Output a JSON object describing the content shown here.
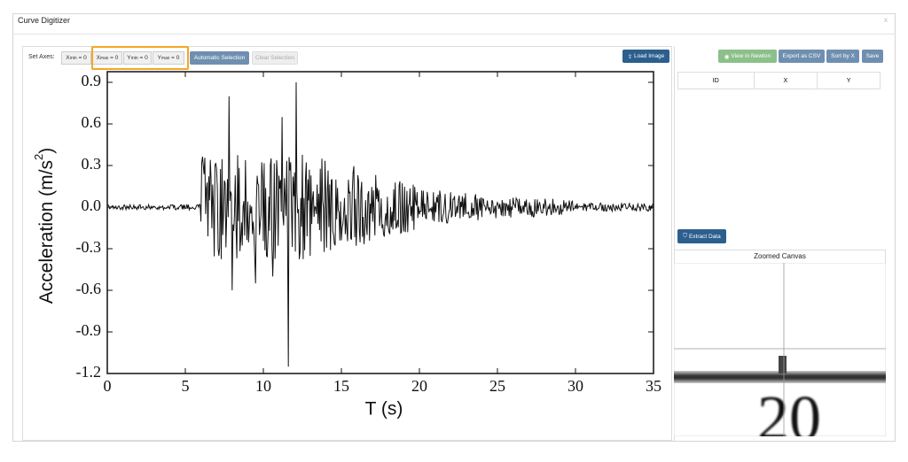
{
  "header": {
    "title": "Curve Digitizer",
    "close": "x"
  },
  "toolbar": {
    "set_axes_label": "Set Axes:",
    "axis_buttons": [
      {
        "symbol": "X",
        "subscript": "min",
        "rest": " = 0"
      },
      {
        "symbol": "X",
        "subscript": "max",
        "rest": " = 0"
      },
      {
        "symbol": "Y",
        "subscript": "min",
        "rest": " = 0"
      },
      {
        "symbol": "Y",
        "subscript": "max",
        "rest": " = 0"
      }
    ],
    "automatic_selection": "Automatic Selection",
    "clear_selection": "Clear Selection",
    "load_image": "Load Image"
  },
  "loaded_image": {
    "y_ticks": [
      "0.9",
      "0.6",
      "0.3",
      "0.0",
      "-0.3",
      "-0.6",
      "-0.9",
      "-1.2"
    ],
    "x_ticks": [
      "0",
      "5",
      "10",
      "15",
      "20",
      "25",
      "30",
      "35"
    ],
    "y_axis_label": {
      "text": "Acceleration (m/s",
      "superscript": "2",
      "close": ")"
    },
    "x_axis_label": "T (s)"
  },
  "right_panel": {
    "view_in_newton": "View in Newton",
    "export_csv": "Export as CSV",
    "sort_by_x": "Sort by X",
    "save": "Save",
    "table": {
      "columns": [
        "ID",
        "X",
        "Y"
      ]
    },
    "extract_data": "Extract Data",
    "zoomed_canvas": {
      "title": "Zoomed Canvas",
      "visible_label": "20"
    }
  }
}
